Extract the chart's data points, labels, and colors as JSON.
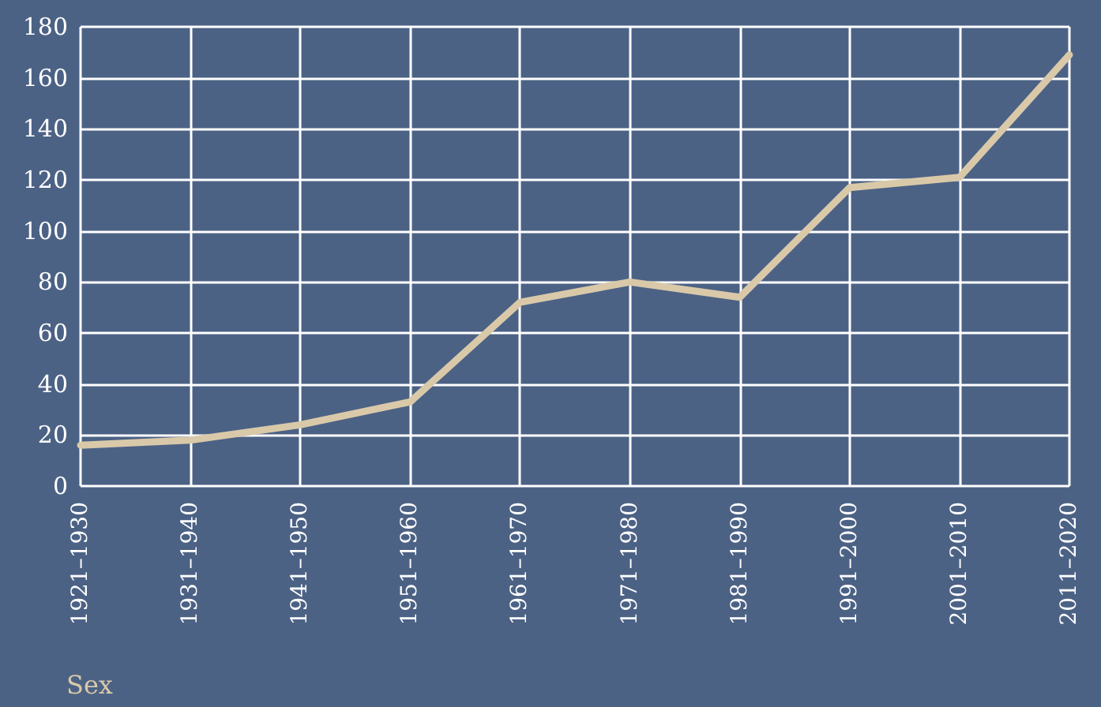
{
  "chart_data": {
    "type": "line",
    "categories": [
      "1921–1930",
      "1931–1940",
      "1941–1950",
      "1951–1960",
      "1961–1970",
      "1971–1980",
      "1981–1990",
      "1991–2000",
      "2001–2010",
      "2011–2020"
    ],
    "series": [
      {
        "color": "#d9c9a9",
        "values": [
          16,
          18,
          24,
          33,
          72,
          80,
          74,
          117,
          121,
          169
        ]
      }
    ],
    "ylim": [
      0,
      180
    ],
    "yticks": [
      0,
      20,
      40,
      60,
      80,
      100,
      120,
      140,
      160,
      180
    ],
    "grid": true,
    "marker": "none",
    "line_style": "solid",
    "annotations": [
      "Sex"
    ]
  }
}
